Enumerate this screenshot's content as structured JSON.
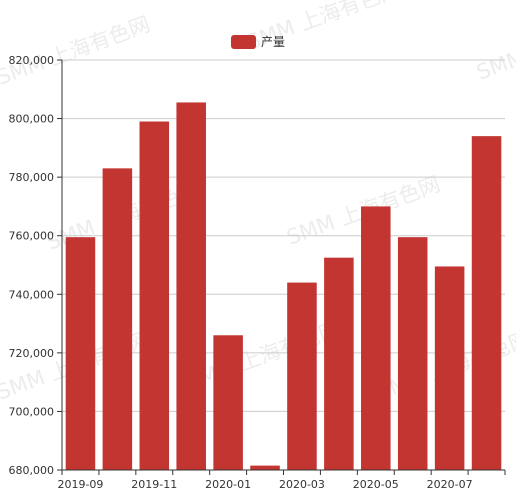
{
  "chart_data": {
    "type": "bar",
    "title": "",
    "xlabel": "",
    "ylabel": "",
    "categories": [
      "2019-09",
      "2019-10",
      "2019-11",
      "2019-12",
      "2020-01",
      "2020-02",
      "2020-03",
      "2020-04",
      "2020-05",
      "2020-06",
      "2020-07",
      "2020-08"
    ],
    "x_tick_labels": [
      "2019-09",
      "2019-11",
      "2020-01",
      "2020-03",
      "2020-05",
      "2020-07"
    ],
    "series": [
      {
        "name": "产量",
        "color": "#c23531",
        "values": [
          759500,
          783000,
          799000,
          805500,
          726000,
          681500,
          744000,
          752500,
          770000,
          759500,
          749500,
          794000
        ]
      }
    ],
    "ylim": [
      680000,
      820000
    ],
    "y_ticks": [
      680000,
      700000,
      720000,
      740000,
      760000,
      780000,
      800000,
      820000
    ],
    "y_tick_labels": [
      "680,000",
      "700,000",
      "720,000",
      "740,000",
      "760,000",
      "780,000",
      "800,000",
      "820,000"
    ],
    "grid": true,
    "legend_position": "top-center"
  },
  "watermark": {
    "text": "SMM 上海有色网"
  }
}
